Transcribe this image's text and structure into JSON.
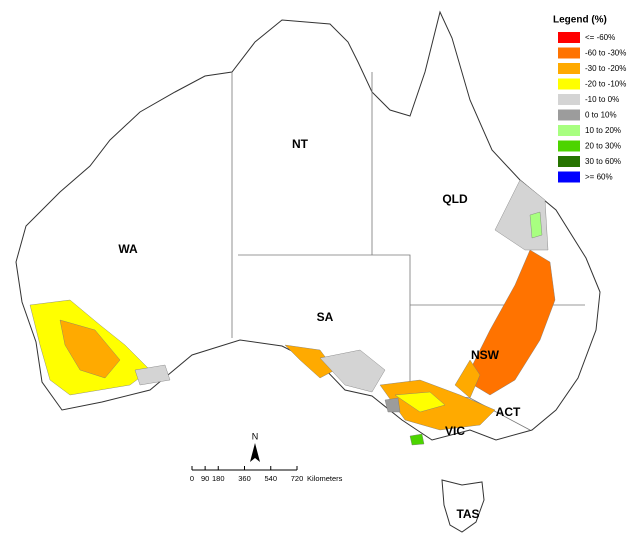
{
  "legend": {
    "title": "Legend (%)",
    "items": [
      {
        "label": "<= -60%",
        "color": "#ff0000"
      },
      {
        "label": "-60 to -30%",
        "color": "#ff7300"
      },
      {
        "label": "-30 to -20%",
        "color": "#ffaa00"
      },
      {
        "label": "-20 to -10%",
        "color": "#ffff00"
      },
      {
        "label": "-10 to 0%",
        "color": "#d4d4d4"
      },
      {
        "label": "0 to 10%",
        "color": "#9c9c9c"
      },
      {
        "label": "10 to 20%",
        "color": "#a8ff80"
      },
      {
        "label": "20 to 30%",
        "color": "#4cd400"
      },
      {
        "label": "30 to 60%",
        "color": "#267300"
      },
      {
        "label": ">= 60%",
        "color": "#0000ff"
      }
    ]
  },
  "regions": [
    "NT",
    "WA",
    "QLD",
    "SA",
    "NSW",
    "ACT",
    "VIC",
    "TAS"
  ],
  "north": "N",
  "scale": {
    "ticks": [
      0,
      90,
      180,
      360,
      540,
      720
    ],
    "unit": "Kilometers"
  }
}
